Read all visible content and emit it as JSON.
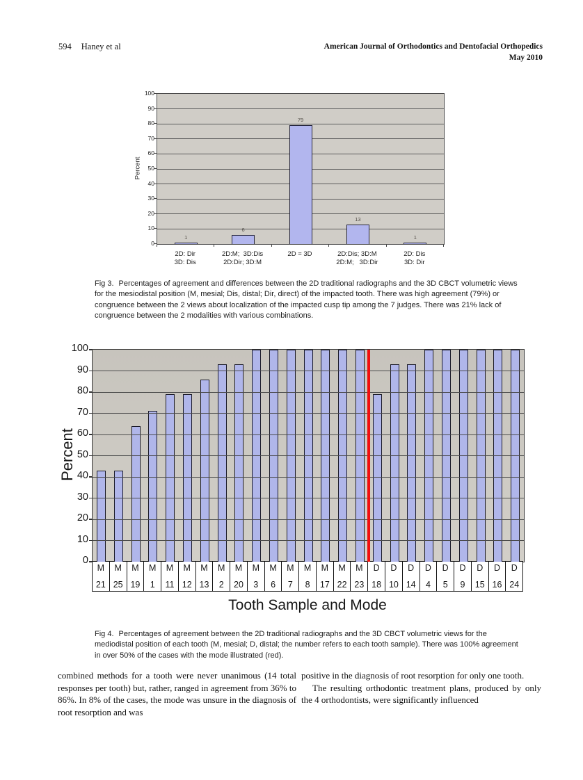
{
  "header": {
    "page_number": "594",
    "authors": "Haney et al",
    "journal": "American Journal of Orthodontics and Dentofacial Orthopedics",
    "issue": "May 2010"
  },
  "fig3": {
    "caption_label": "Fig 3.",
    "caption": "Percentages of agreement and differences between the 2D traditional radiographs and the 3D CBCT volumetric views for the mesiodistal position (M, mesial; Dis, distal; Dir, direct) of the impacted tooth. There was high agreement (79%) or congruence between the 2 views about localization of the impacted cusp tip among the 7 judges. There was 21% lack of congruence between the 2 modalities with various combinations."
  },
  "fig4": {
    "caption_label": "Fig 4.",
    "caption": "Percentages of agreement between the 2D traditional radiographs and the 3D CBCT volumetric views for the mediodistal position of each tooth (M, mesial; D, distal; the number refers to each tooth sample). There was 100% agreement in over 50% of the cases with the mode illustrated (red)."
  },
  "body": {
    "left_column": "combined methods for a tooth were never unanimous (14 total responses per tooth) but, rather, ranged in agreement from 36% to 86%. In 8% of the cases, the mode was unsure in the diagnosis of root resorption and was",
    "right_p1": "positive in the diagnosis of root resorption for only one tooth.",
    "right_p2": "The resulting orthodontic treatment plans, produced by only the 4 orthodontists, were significantly influenced"
  },
  "chart_data": [
    {
      "id": "fig3",
      "type": "bar",
      "title": "",
      "xlabel": "",
      "ylabel": "Percent",
      "ylim": [
        0,
        100
      ],
      "ytick_step": 10,
      "grid": true,
      "value_labels": true,
      "categories": [
        [
          "2D: Dir",
          "3D: Dis"
        ],
        [
          "2D:M;  3D:Dis",
          "2D:Dir; 3D:M"
        ],
        [
          "2D = 3D"
        ],
        [
          "2D:Dis; 3D:M",
          "2D:M;   3D:Dir"
        ],
        [
          "2D: Dis",
          "3D: Dir"
        ]
      ],
      "values": [
        1,
        6,
        79,
        13,
        1
      ],
      "bar_color": "#b2b6ee",
      "plot_bg": "#d0cdc7"
    },
    {
      "id": "fig4",
      "type": "bar",
      "title": "",
      "xlabel": "Tooth Sample and Mode",
      "ylabel": "Percent",
      "ylim": [
        0,
        100
      ],
      "ytick_step": 10,
      "grid": true,
      "value_labels": false,
      "categories": [
        [
          "M",
          "21"
        ],
        [
          "M",
          "25"
        ],
        [
          "M",
          "19"
        ],
        [
          "M",
          "1"
        ],
        [
          "M",
          "11"
        ],
        [
          "M",
          "12"
        ],
        [
          "M",
          "13"
        ],
        [
          "M",
          "2"
        ],
        [
          "M",
          "20"
        ],
        [
          "M",
          "3"
        ],
        [
          "M",
          "6"
        ],
        [
          "M",
          "7"
        ],
        [
          "M",
          "8"
        ],
        [
          "M",
          "17"
        ],
        [
          "M",
          "22"
        ],
        [
          "M",
          "23"
        ],
        [
          "D",
          "18"
        ],
        [
          "D",
          "10"
        ],
        [
          "D",
          "14"
        ],
        [
          "D",
          "4"
        ],
        [
          "D",
          "5"
        ],
        [
          "D",
          "9"
        ],
        [
          "D",
          "15"
        ],
        [
          "D",
          "16"
        ],
        [
          "D",
          "24"
        ]
      ],
      "values": [
        43,
        43,
        64,
        71,
        79,
        79,
        86,
        93,
        93,
        100,
        100,
        100,
        100,
        100,
        100,
        100,
        79,
        93,
        93,
        100,
        100,
        100,
        100,
        100,
        100
      ],
      "mode_divider_after_index": 15,
      "divider_color": "#f20d0d",
      "bar_color": "#b0b6ea",
      "plot_bg": "#cbc8c1"
    }
  ]
}
